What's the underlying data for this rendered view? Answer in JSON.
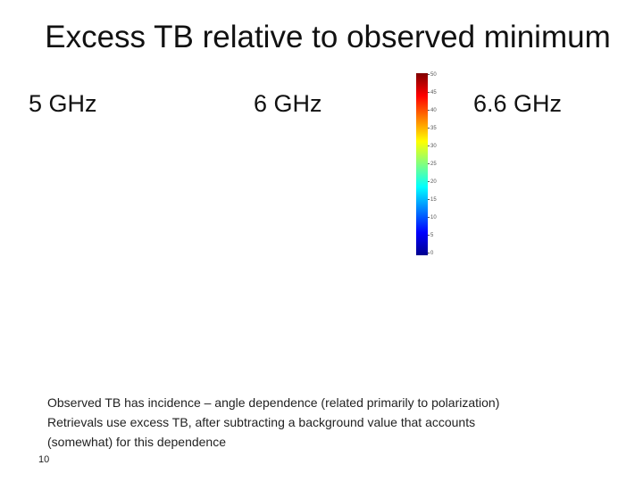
{
  "slide": {
    "title": "Excess TB relative to observed minimum",
    "panels": [
      {
        "label": "5 GHz"
      },
      {
        "label": "6 GHz"
      },
      {
        "label": "6.6 GHz"
      }
    ],
    "colorbar": {
      "ticks": [
        "50",
        "45",
        "40",
        "35",
        "30",
        "25",
        "20",
        "15",
        "10",
        "5",
        "0"
      ],
      "colors": [
        "#800000",
        "#ff0000",
        "#ff8000",
        "#ffff00",
        "#80ff80",
        "#00ffff",
        "#0080ff",
        "#0000ff",
        "#00008f"
      ]
    },
    "notes": [
      "Observed TB has incidence – angle dependence (related primarily to polarization)",
      "Retrievals use excess TB, after subtracting a background value that accounts",
      "(somewhat) for this dependence"
    ],
    "page_number": "10"
  }
}
